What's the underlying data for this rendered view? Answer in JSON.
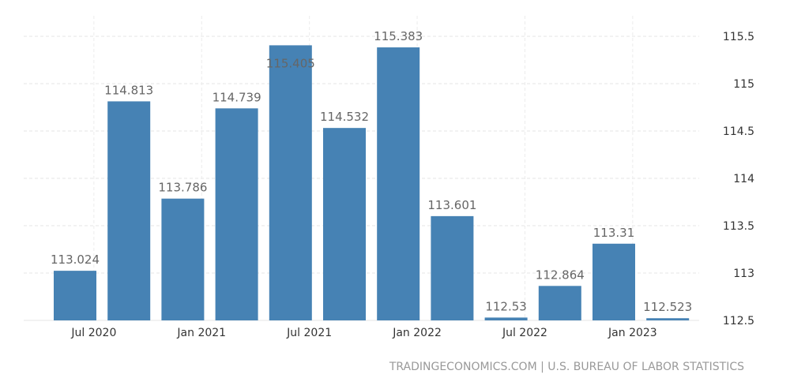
{
  "chart_data": {
    "type": "bar",
    "title": "",
    "xlabel": "",
    "ylabel": "",
    "ylim": [
      112.5,
      115.5
    ],
    "yticks": [
      "112.5",
      "113",
      "113.5",
      "114",
      "114.5",
      "115",
      "115.5"
    ],
    "y_axis_position": "right",
    "grid": true,
    "xtick_labels": [
      "Jul 2020",
      "Jan 2021",
      "Jul 2021",
      "Jan 2022",
      "Jul 2022",
      "Jan 2023"
    ],
    "values": [
      113.024,
      114.813,
      113.786,
      114.739,
      115.405,
      114.532,
      115.383,
      113.601,
      112.53,
      112.864,
      113.31,
      112.523
    ],
    "value_labels": [
      "113.024",
      "114.813",
      "113.786",
      "114.739",
      "115.405",
      "114.532",
      "115.383",
      "113.601",
      "112.53",
      "112.864",
      "113.31",
      "112.523"
    ],
    "bar_color": "#4682b4"
  },
  "source": "TRADINGECONOMICS.COM | U.S. BUREAU OF LABOR STATISTICS"
}
